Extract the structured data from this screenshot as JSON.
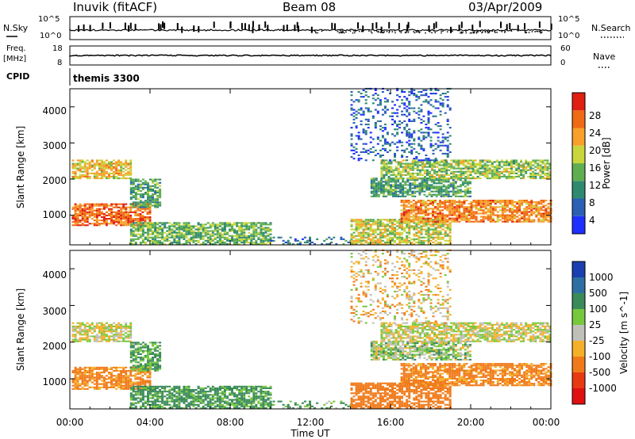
{
  "header": {
    "station": "Inuvik (fitACF)",
    "beam": "Beam 08",
    "date": "03/Apr/2009"
  },
  "noise_panel": {
    "left_label": "N.Sky",
    "right_label": "N.Search",
    "left_ticks": [
      "10^5",
      "10^0"
    ],
    "right_ticks": [
      "10^5",
      "10^0"
    ]
  },
  "freq_panel": {
    "left_label_top": "Freq.",
    "left_label_unit": "[MHz]",
    "right_label": "Nave",
    "left_ticks": [
      "18",
      "8"
    ],
    "right_ticks": [
      "60",
      "0"
    ]
  },
  "cpid_panel": {
    "label": "CPID",
    "program": "themis 3300"
  },
  "axes": {
    "ylabel": "Slant Range [km]",
    "xlabel": "Time UT",
    "x_ticks": [
      "00:00",
      "04:00",
      "08:00",
      "12:00",
      "16:00",
      "20:00",
      "00:00"
    ],
    "y_ticks": [
      "1000",
      "2000",
      "3000",
      "4000"
    ]
  },
  "colorbars": {
    "power": {
      "label": "Power [dB]",
      "ticks": [
        "4",
        "8",
        "12",
        "16",
        "20",
        "24",
        "28"
      ],
      "colors": [
        "#1e30ff",
        "#2a5fb4",
        "#2e8a6f",
        "#5fae52",
        "#c8d63c",
        "#f7a02a",
        "#f06a14",
        "#e02010"
      ]
    },
    "velocity": {
      "label": "Velocity [m s^-1]",
      "ticks": [
        "1000",
        "500",
        "100",
        "25",
        "-25",
        "-100",
        "-500",
        "-1000"
      ],
      "colors": [
        "#1a3fb0",
        "#2e6fa3",
        "#3a8a5a",
        "#78c83c",
        "#c0c0b8",
        "#f5b02a",
        "#f07a1a",
        "#e83a12",
        "#e01010"
      ]
    }
  },
  "chart_data": {
    "type": "heatmap",
    "title": "Inuvik (fitACF)",
    "xlabel": "Time UT",
    "ylabel": "Slant Range [km]",
    "xlim": [
      0,
      24
    ],
    "ylim": [
      180,
      4500
    ],
    "x_tick_values_hours": [
      0,
      4,
      8,
      12,
      16,
      20,
      24
    ],
    "y_tick_values_km": [
      1000,
      2000,
      3000,
      4000
    ],
    "power_bins_db": [
      0,
      4,
      8,
      12,
      16,
      20,
      24,
      28,
      32
    ],
    "velocity_bins_ms": [
      1000,
      500,
      100,
      25,
      -25,
      -100,
      -500,
      -1000
    ],
    "scatter_regions": [
      {
        "t0": 0.1,
        "t1": 4.0,
        "r0": 700,
        "r1": 1300,
        "power": 26,
        "velocity": -150
      },
      {
        "t0": 0.1,
        "t1": 3.0,
        "r0": 2000,
        "r1": 2500,
        "power": 20,
        "velocity": 0
      },
      {
        "t0": 3.0,
        "t1": 4.5,
        "r0": 1200,
        "r1": 2000,
        "power": 12,
        "velocity": 120
      },
      {
        "t0": 3.0,
        "t1": 10.0,
        "r0": 180,
        "r1": 800,
        "power": 14,
        "velocity": 150
      },
      {
        "t0": 10.0,
        "t1": 14.0,
        "r0": 180,
        "r1": 400,
        "power": 8,
        "velocity": 100
      },
      {
        "t0": 14.0,
        "t1": 19.0,
        "r0": 180,
        "r1": 900,
        "power": 18,
        "velocity": -200
      },
      {
        "t0": 15.0,
        "t1": 20.0,
        "r0": 1500,
        "r1": 2000,
        "power": 12,
        "velocity": 50
      },
      {
        "t0": 15.5,
        "t1": 24.0,
        "r0": 2000,
        "r1": 2500,
        "power": 16,
        "velocity": 0
      },
      {
        "t0": 16.5,
        "t1": 24.0,
        "r0": 800,
        "r1": 1400,
        "power": 24,
        "velocity": -150
      },
      {
        "t0": 14.0,
        "t1": 19.0,
        "r0": 2500,
        "r1": 4500,
        "power": 6,
        "velocity": -50
      }
    ]
  }
}
